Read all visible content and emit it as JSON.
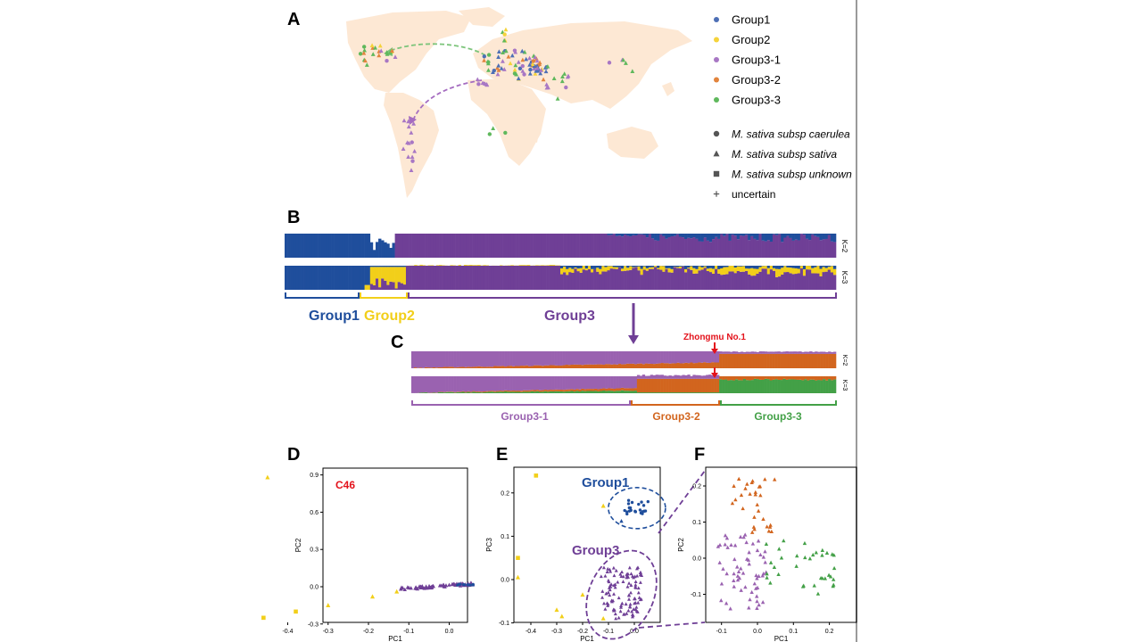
{
  "panels": {
    "a": "A",
    "b": "B",
    "c": "C",
    "d": "D",
    "e": "E",
    "f": "F"
  },
  "legend": {
    "groups": [
      {
        "label": "Group1",
        "color": "#4d6fb5"
      },
      {
        "label": "Group2",
        "color": "#f5d33b"
      },
      {
        "label": "Group3-1",
        "color": "#a877c4"
      },
      {
        "label": "Group3-2",
        "color": "#e2843d"
      },
      {
        "label": "Group3-3",
        "color": "#5fb85c"
      }
    ],
    "shapes": [
      {
        "label": "M. sativa subsp caerulea",
        "shape": "circle"
      },
      {
        "label": "M. sativa subsp sativa",
        "shape": "triangle"
      },
      {
        "label": "M. sativa subsp unknown",
        "shape": "square"
      },
      {
        "label": "uncertain",
        "shape": "plus"
      }
    ]
  },
  "colors": {
    "blue": "#1f4e9c",
    "purple": "#6f3f96",
    "yellow": "#f2cf1a",
    "lpurple": "#9a62b0",
    "orange": "#d2651e",
    "green": "#43a047",
    "land": "#fde8d4",
    "red": "#e3121b"
  },
  "structure_b": {
    "k_labels": [
      "K=2",
      "K=3"
    ],
    "groups": [
      "Group1",
      "Group2",
      "Group3"
    ]
  },
  "structure_c": {
    "k_labels": [
      "K=2",
      "K=3"
    ],
    "groups": [
      "Group3-1",
      "Group3-2",
      "Group3-3"
    ],
    "marker": "Zhongmu No.1"
  },
  "pca_d": {
    "annotation": "C46",
    "xlabel": "PC1",
    "ylabel": "PC2",
    "xticks": [
      "-0.4",
      "-0.3",
      "-0.2",
      "-0.1",
      "0.0"
    ],
    "yticks": [
      "0.9",
      "0.6",
      "0.3",
      "0.0",
      "-0.3"
    ]
  },
  "pca_e": {
    "labels": [
      "Group1",
      "Group3"
    ],
    "xlabel": "PC1",
    "ylabel": "PC3",
    "xticks": [
      "-0.4",
      "-0.3",
      "-0.2",
      "-0.1",
      "0.0"
    ],
    "yticks": [
      "0.2",
      "0.1",
      "0.0",
      "-0.1"
    ]
  },
  "pca_f": {
    "xlabel": "PC1",
    "ylabel": "PC2",
    "xticks": [
      "-0.1",
      "0.0",
      "0.1",
      "0.2"
    ],
    "yticks": [
      "0.2",
      "0.1",
      "0.0",
      "-0.1"
    ]
  }
}
